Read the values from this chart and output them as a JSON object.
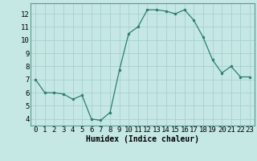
{
  "x": [
    0,
    1,
    2,
    3,
    4,
    5,
    6,
    7,
    8,
    9,
    10,
    11,
    12,
    13,
    14,
    15,
    16,
    17,
    18,
    19,
    20,
    21,
    22,
    23
  ],
  "y": [
    7.0,
    6.0,
    6.0,
    5.9,
    5.5,
    5.8,
    4.0,
    3.9,
    4.5,
    7.7,
    10.5,
    11.0,
    12.3,
    12.3,
    12.2,
    12.0,
    12.3,
    11.5,
    10.2,
    8.5,
    7.5,
    8.0,
    7.2,
    7.2
  ],
  "line_color": "#2e7d6e",
  "marker_color": "#2e7d6e",
  "bg_color": "#c5e8e5",
  "grid_color": "#a8d0cc",
  "xlabel": "Humidex (Indice chaleur)",
  "xlim": [
    -0.5,
    23.5
  ],
  "ylim": [
    3.5,
    12.8
  ],
  "yticks": [
    4,
    5,
    6,
    7,
    8,
    9,
    10,
    11,
    12
  ],
  "xtick_labels": [
    "0",
    "1",
    "2",
    "3",
    "4",
    "5",
    "6",
    "7",
    "8",
    "9",
    "10",
    "11",
    "12",
    "13",
    "14",
    "15",
    "16",
    "17",
    "18",
    "19",
    "20",
    "21",
    "22",
    "23"
  ],
  "label_fontsize": 7,
  "tick_fontsize": 6.5
}
